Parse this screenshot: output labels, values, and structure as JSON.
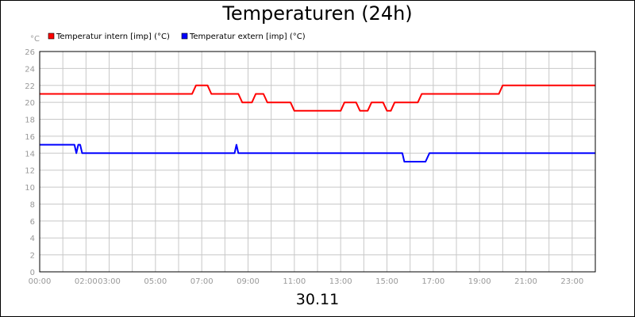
{
  "title": "Temperaturen (24h)",
  "footer_label": "30.11",
  "chart_data": {
    "type": "line",
    "title": "Temperaturen (24h)",
    "xlabel": "30.11",
    "ylabel": "°C",
    "ylim": [
      0,
      26
    ],
    "xlim": [
      "00:00",
      "24:00"
    ],
    "grid": true,
    "legend_position": "top-left",
    "y_ticks": [
      "0",
      "2",
      "4",
      "6",
      "8",
      "10",
      "12",
      "14",
      "16",
      "18",
      "20",
      "22",
      "24",
      "26"
    ],
    "x_ticks": [
      "00:00",
      "02:00",
      "03:00",
      "05:00",
      "07:00",
      "09:00",
      "11:00",
      "13:00",
      "15:00",
      "17:00",
      "19:00",
      "21:00",
      "23:00"
    ],
    "series": [
      {
        "name": "Temperatur intern [imp] (°C)",
        "color": "#ff0000",
        "points": [
          [
            "00:00",
            21
          ],
          [
            "06:35",
            21
          ],
          [
            "06:45",
            22
          ],
          [
            "07:15",
            22
          ],
          [
            "07:25",
            21
          ],
          [
            "08:35",
            21
          ],
          [
            "08:45",
            20
          ],
          [
            "09:10",
            20
          ],
          [
            "09:20",
            21
          ],
          [
            "09:40",
            21
          ],
          [
            "09:50",
            20
          ],
          [
            "10:50",
            20
          ],
          [
            "11:00",
            19
          ],
          [
            "13:00",
            19
          ],
          [
            "13:10",
            20
          ],
          [
            "13:40",
            20
          ],
          [
            "13:50",
            19
          ],
          [
            "14:10",
            19
          ],
          [
            "14:20",
            20
          ],
          [
            "14:50",
            20
          ],
          [
            "15:00",
            19
          ],
          [
            "15:10",
            19
          ],
          [
            "15:20",
            20
          ],
          [
            "16:20",
            20
          ],
          [
            "16:30",
            21
          ],
          [
            "19:50",
            21
          ],
          [
            "20:00",
            22
          ],
          [
            "24:00",
            22
          ]
        ]
      },
      {
        "name": "Temperatur extern [imp] (°C)",
        "color": "#0000ff",
        "points": [
          [
            "00:00",
            15
          ],
          [
            "01:30",
            15
          ],
          [
            "01:35",
            14
          ],
          [
            "01:40",
            15
          ],
          [
            "01:45",
            15
          ],
          [
            "01:50",
            14
          ],
          [
            "08:25",
            14
          ],
          [
            "08:30",
            15
          ],
          [
            "08:35",
            14
          ],
          [
            "15:40",
            14
          ],
          [
            "15:45",
            13
          ],
          [
            "16:40",
            13
          ],
          [
            "16:50",
            14
          ],
          [
            "24:00",
            14
          ]
        ]
      }
    ]
  }
}
